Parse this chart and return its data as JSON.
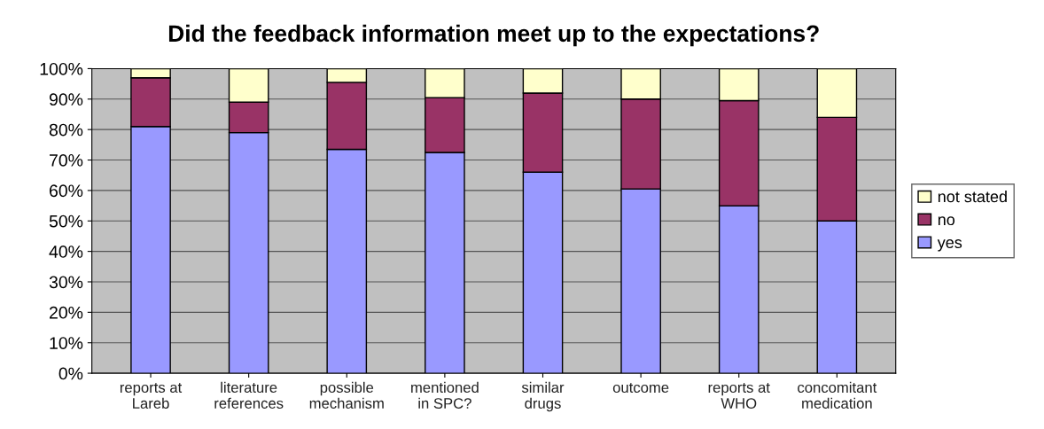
{
  "chart_data": {
    "type": "bar",
    "title": "Did the feedback information meet up to the expectations?",
    "categories": [
      "reports at\nLareb",
      "literature\nreferences",
      "possible\nmechanism",
      "mentioned\nin SPC?",
      "similar\ndrugs",
      "outcome",
      "reports at\nWHO",
      "concomitant\nmedication"
    ],
    "stacked": true,
    "series": [
      {
        "name": "yes",
        "color": "#9999ff",
        "values": [
          81,
          79,
          73.5,
          72.5,
          66,
          60.5,
          55,
          50
        ]
      },
      {
        "name": "no",
        "color": "#993366",
        "values": [
          16,
          10,
          22,
          18,
          26,
          29.5,
          34.5,
          34
        ]
      },
      {
        "name": "not stated",
        "color": "#ffffcc",
        "values": [
          3,
          11,
          4.5,
          9.5,
          8,
          10,
          10.5,
          16
        ]
      }
    ],
    "ylim": [
      0,
      100
    ],
    "yticks": [
      {
        "value": 0,
        "label": "0%"
      },
      {
        "value": 10,
        "label": "10%"
      },
      {
        "value": 20,
        "label": "20%"
      },
      {
        "value": 30,
        "label": "30%"
      },
      {
        "value": 40,
        "label": "40%"
      },
      {
        "value": 50,
        "label": "50%"
      },
      {
        "value": 60,
        "label": "60%"
      },
      {
        "value": 70,
        "label": "70%"
      },
      {
        "value": 80,
        "label": "80%"
      },
      {
        "value": 90,
        "label": "90%"
      },
      {
        "value": 100,
        "label": "100%"
      }
    ],
    "grid": "y",
    "legend": "right"
  }
}
